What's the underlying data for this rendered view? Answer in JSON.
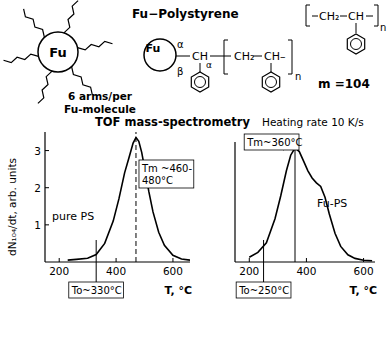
{
  "figure": {
    "molecule": {
      "label": "Fu",
      "caption": [
        "6 arms/per",
        "Fu-molecule"
      ]
    },
    "structure": {
      "title": "Fu−Polystyrene",
      "core": "Fu",
      "alpha": "α",
      "beta": "β",
      "groups": [
        "CH",
        "CH₂",
        "CH–"
      ],
      "repeat": "n"
    },
    "monomer": {
      "groups": [
        "CH₂",
        "CH"
      ],
      "repeat": "n",
      "mass": "m =104"
    },
    "heading": "TOF mass-spectrometry",
    "note": "Heating rate 10 K/s"
  },
  "chart_data": [
    {
      "type": "line",
      "label": "pure PS",
      "xlabel": "T, °C",
      "ylabel": "dN₁₀₄/dt, arb. units",
      "x": [
        230,
        260,
        300,
        330,
        360,
        390,
        410,
        430,
        445,
        460,
        470,
        480,
        490,
        500,
        515,
        530,
        550,
        570,
        600,
        630,
        660
      ],
      "values": [
        0.05,
        0.07,
        0.1,
        0.2,
        0.5,
        1.1,
        1.7,
        2.4,
        2.8,
        3.2,
        3.35,
        3.25,
        2.95,
        2.55,
        1.9,
        1.35,
        0.8,
        0.45,
        0.18,
        0.08,
        0.05
      ],
      "color": "#000000",
      "xlim": [
        150,
        660
      ],
      "xticks": [
        200,
        400,
        600
      ],
      "ylim": [
        0,
        3.5
      ],
      "yticks": [
        1,
        2,
        3
      ],
      "vlines": [
        {
          "value": 330,
          "label": [
            "To~330°C"
          ],
          "line_style": "solid"
        },
        {
          "value": 470,
          "label": [
            "Tm ~460-",
            "480°C"
          ],
          "line_style": "dashed"
        }
      ]
    },
    {
      "type": "line",
      "label": "Fu-PS",
      "xlabel": "T, °C",
      "x": [
        200,
        230,
        260,
        290,
        310,
        330,
        345,
        360,
        375,
        390,
        405,
        420,
        435,
        450,
        465,
        480,
        500,
        520,
        545,
        570,
        600,
        630
      ],
      "values": [
        0.4,
        0.8,
        1.6,
        3.6,
        5.5,
        7.6,
        8.9,
        9.5,
        9.2,
        8.4,
        7.6,
        7.0,
        6.6,
        6.3,
        5.4,
        4.0,
        2.4,
        1.3,
        0.6,
        0.3,
        0.15,
        0.1
      ],
      "color": "#000000",
      "xlim": [
        150,
        640
      ],
      "xticks": [
        200,
        400,
        600
      ],
      "ylim": [
        0,
        10
      ],
      "tick_labels": "x",
      "vlines": [
        {
          "value": 250,
          "label": [
            "To~250°C"
          ],
          "line_style": "solid"
        },
        {
          "value": 360,
          "label": [
            "Tm~360°C"
          ],
          "line_style": "solid"
        }
      ]
    }
  ]
}
